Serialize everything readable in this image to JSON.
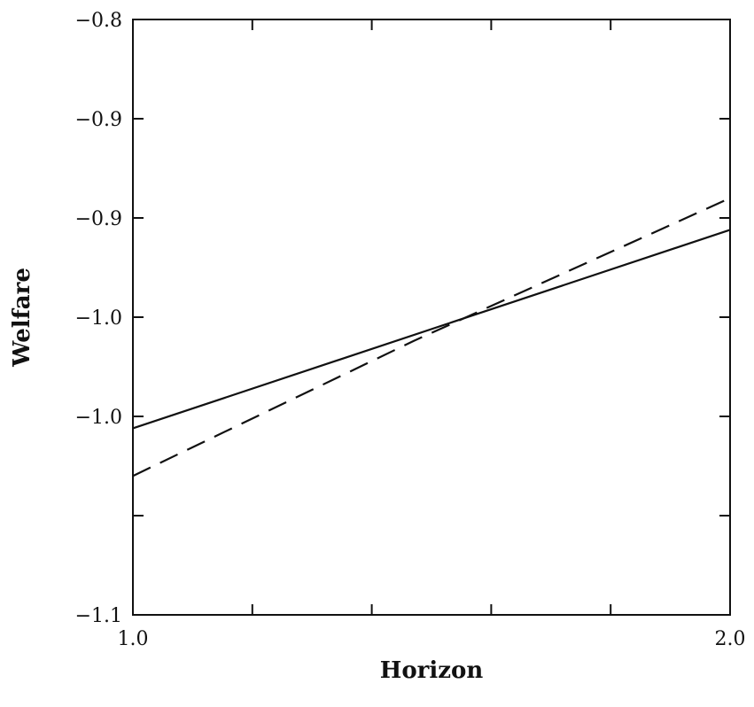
{
  "chart_data": {
    "type": "line",
    "xlabel": "Horizon",
    "ylabel": "Welfare",
    "xlim": [
      1.0,
      2.0
    ],
    "ylim": [
      -1.1,
      -0.8
    ],
    "x_tick_labels": [
      {
        "value": 1.0,
        "label": "1.0"
      },
      {
        "value": 2.0,
        "label": "2.0"
      }
    ],
    "x_minor_ticks": [
      1.2,
      1.4,
      1.6,
      1.8
    ],
    "y_tick_labels": [
      {
        "value": -0.8,
        "label": "-0.8"
      },
      {
        "value": -0.85,
        "label": "-0.9"
      },
      {
        "value": -0.9,
        "label": "-0.9"
      },
      {
        "value": -0.95,
        "label": "-1.0"
      },
      {
        "value": -1.0,
        "label": "-1.0"
      },
      {
        "value": -1.1,
        "label": "-1.1"
      }
    ],
    "y_minor_ticks": [
      -1.05
    ],
    "grid": false,
    "series": [
      {
        "style": "solid",
        "x": [
          1.0,
          2.0
        ],
        "y": [
          -1.006,
          -0.906
        ]
      },
      {
        "style": "dashed",
        "x": [
          1.0,
          1.47,
          2.0
        ],
        "y": [
          -1.03,
          -0.962,
          -0.89
        ]
      }
    ]
  }
}
